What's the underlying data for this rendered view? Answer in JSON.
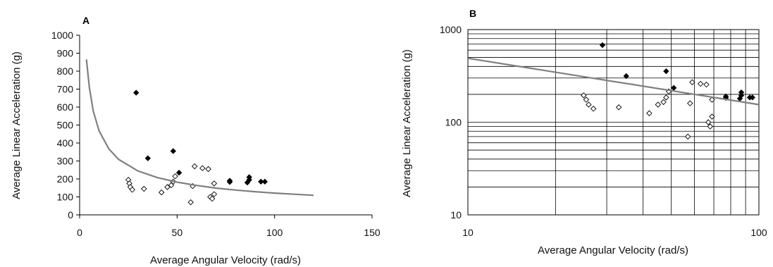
{
  "chart_data": [
    {
      "panel": "A",
      "type": "scatter",
      "xlabel": "Average Angular Velocity (rad/s)",
      "ylabel": "Average Linear Acceleration (g)",
      "xlim": [
        0,
        150
      ],
      "ylim": [
        0,
        1000
      ],
      "x_ticks": [
        0,
        50,
        100,
        150
      ],
      "y_ticks": [
        0,
        100,
        200,
        300,
        400,
        500,
        600,
        700,
        800,
        900,
        1000
      ],
      "x_scale": "linear",
      "y_scale": "linear",
      "grid": false,
      "legend": "none",
      "series": [
        {
          "marker": "filled-diamond",
          "color": "#000000",
          "points": [
            [
              29,
              680
            ],
            [
              35,
              315
            ],
            [
              48,
              355
            ],
            [
              51,
              235
            ],
            [
              77,
              190
            ],
            [
              77,
              183
            ],
            [
              86,
              180
            ],
            [
              87,
              210
            ],
            [
              87,
              195
            ],
            [
              93,
              185
            ],
            [
              95,
              185
            ]
          ]
        },
        {
          "marker": "open-diamond",
          "color": "#000000",
          "points": [
            [
              25,
              195
            ],
            [
              25.5,
              175
            ],
            [
              26,
              155
            ],
            [
              27,
              140
            ],
            [
              33,
              145
            ],
            [
              42,
              125
            ],
            [
              45,
              155
            ],
            [
              47,
              165
            ],
            [
              48,
              185
            ],
            [
              49,
              215
            ],
            [
              57,
              70
            ],
            [
              58,
              160
            ],
            [
              59,
              270
            ],
            [
              63,
              260
            ],
            [
              66,
              255
            ],
            [
              67,
              100
            ],
            [
              68,
              90
            ],
            [
              69,
              115
            ],
            [
              69,
              175
            ]
          ]
        },
        {
          "marker": "line",
          "color": "#7f7f7f",
          "x": [
            3.5,
            5,
            7,
            10,
            15,
            20,
            30,
            40,
            50,
            60,
            70,
            80,
            90,
            100,
            110,
            120
          ],
          "y": [
            865,
            709,
            577,
            467,
            367,
            309,
            244,
            207,
            182,
            164,
            149,
            138,
            129,
            121,
            115,
            109
          ]
        }
      ]
    },
    {
      "panel": "B",
      "type": "scatter",
      "xlabel": "Average Angular Velocity (rad/s)",
      "ylabel": "Average Linear Acceleration (g)",
      "xlim": [
        10,
        100
      ],
      "ylim": [
        10,
        1000
      ],
      "x_ticks": [
        10,
        100
      ],
      "y_ticks": [
        10,
        100,
        1000
      ],
      "x_scale": "log",
      "y_scale": "log",
      "grid": true,
      "legend": "none",
      "series": [
        {
          "marker": "filled-diamond",
          "color": "#000000",
          "points": [
            [
              29,
              680
            ],
            [
              35,
              315
            ],
            [
              48,
              355
            ],
            [
              51,
              235
            ],
            [
              77,
              190
            ],
            [
              77,
              183
            ],
            [
              86,
              180
            ],
            [
              87,
              210
            ],
            [
              87,
              195
            ],
            [
              93,
              185
            ],
            [
              95,
              185
            ]
          ]
        },
        {
          "marker": "open-diamond",
          "color": "#000000",
          "points": [
            [
              25,
              195
            ],
            [
              25.5,
              175
            ],
            [
              26,
              155
            ],
            [
              27,
              140
            ],
            [
              33,
              145
            ],
            [
              42,
              125
            ],
            [
              45,
              155
            ],
            [
              47,
              165
            ],
            [
              48,
              185
            ],
            [
              49,
              215
            ],
            [
              57,
              70
            ],
            [
              58,
              160
            ],
            [
              59,
              270
            ],
            [
              63,
              260
            ],
            [
              66,
              255
            ],
            [
              67,
              100
            ],
            [
              68,
              90
            ],
            [
              69,
              115
            ],
            [
              69,
              175
            ]
          ]
        },
        {
          "marker": "line",
          "color": "#7f7f7f",
          "x": [
            10,
            100
          ],
          "y": [
            490,
            155
          ]
        }
      ]
    }
  ]
}
